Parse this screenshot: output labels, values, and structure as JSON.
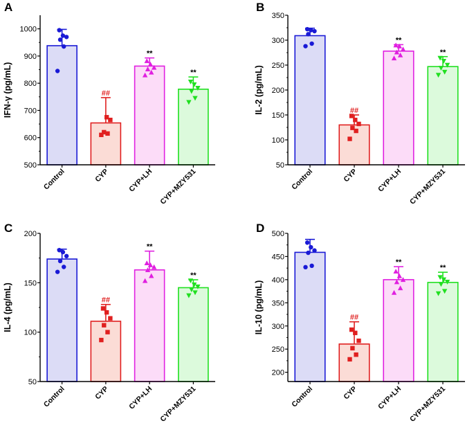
{
  "figure": {
    "groups": [
      "Control",
      "CYP",
      "CYP+LH",
      "CYP+MZY531"
    ],
    "group_colors": {
      "edge": [
        "#1a1ad6",
        "#e02020",
        "#e020e0",
        "#20e020"
      ],
      "fill": [
        "#dcdcf6",
        "#fbdcd6",
        "#fcdcf8",
        "#dcfadc"
      ]
    }
  },
  "chart_data": [
    {
      "panel": "A",
      "type": "bar",
      "ylabel": "IFN-γ (pg/mL)",
      "ylim": [
        500,
        1050
      ],
      "yticks": [
        "500",
        "600",
        "700",
        "800",
        "900",
        "1000"
      ],
      "categories": [
        "Control",
        "CYP",
        "CYP+LH",
        "CYP+MZY531"
      ],
      "values": [
        938,
        654,
        863,
        778
      ],
      "errors": [
        60,
        93,
        30,
        45
      ],
      "points": [
        [
          845,
          935,
          960,
          970,
          975,
          995
        ],
        [
          610,
          615,
          620,
          665,
          675
        ],
        [
          830,
          840,
          852,
          858,
          870,
          882
        ],
        [
          730,
          745,
          770,
          782,
          795,
          805
        ]
      ],
      "significance": [
        "",
        "##",
        "**",
        "**"
      ]
    },
    {
      "panel": "B",
      "type": "bar",
      "ylabel": "IL-2 (pg/mL)",
      "ylim": [
        50,
        350
      ],
      "yticks": [
        "50",
        "100",
        "150",
        "200",
        "250",
        "300",
        "350"
      ],
      "categories": [
        "Control",
        "CYP",
        "CYP+LH",
        "CYP+MZY531"
      ],
      "values": [
        309,
        130,
        278,
        247
      ],
      "errors": [
        15,
        20,
        13,
        20
      ],
      "points": [
        [
          288,
          293,
          312,
          318,
          320,
          322
        ],
        [
          102,
          118,
          124,
          132,
          140,
          148
        ],
        [
          264,
          270,
          276,
          282,
          288,
          290
        ],
        [
          230,
          236,
          244,
          250,
          258,
          264
        ]
      ],
      "significance": [
        "",
        "##",
        "**",
        "**"
      ]
    },
    {
      "panel": "C",
      "type": "bar",
      "ylabel": "IL-4 (pg/mL)",
      "ylim": [
        50,
        200
      ],
      "yticks": [
        "50",
        "100",
        "150",
        "200"
      ],
      "categories": [
        "Control",
        "CYP",
        "CYP+LH",
        "CYP+MZY531"
      ],
      "values": [
        174,
        111,
        163,
        145
      ],
      "errors": [
        10,
        17,
        19,
        8
      ],
      "points": [
        [
          161,
          166,
          172,
          177,
          181,
          183
        ],
        [
          92,
          100,
          107,
          114,
          120,
          124
        ],
        [
          152,
          157,
          163,
          166,
          168,
          170
        ],
        [
          137,
          140,
          143,
          146,
          148,
          152
        ]
      ],
      "significance": [
        "",
        "##",
        "**",
        "**"
      ]
    },
    {
      "panel": "D",
      "type": "bar",
      "ylabel": "IL-10 (pg/mL)",
      "ylim": [
        180,
        500
      ],
      "yticks": [
        "200",
        "250",
        "300",
        "350",
        "400",
        "450",
        "500"
      ],
      "categories": [
        "Control",
        "CYP",
        "CYP+LH",
        "CYP+MZY531"
      ],
      "values": [
        459,
        261,
        400,
        394
      ],
      "errors": [
        28,
        48,
        28,
        22
      ],
      "points": [
        [
          427,
          430,
          458,
          463,
          470,
          480
        ],
        [
          228,
          238,
          252,
          268,
          285,
          292
        ],
        [
          372,
          382,
          395,
          400,
          408,
          418
        ],
        [
          370,
          375,
          390,
          395,
          400,
          405
        ]
      ],
      "significance": [
        "",
        "##",
        "**",
        "**"
      ]
    }
  ]
}
